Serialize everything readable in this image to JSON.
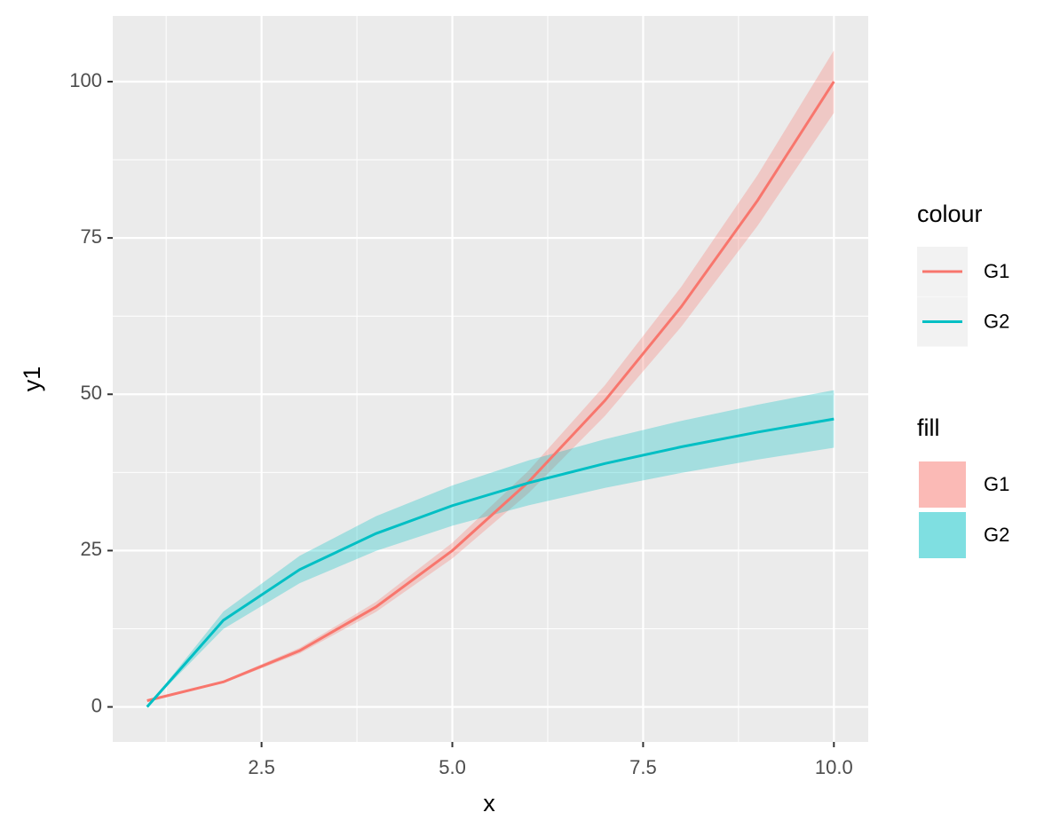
{
  "chart_data": {
    "type": "line",
    "x_label": "x",
    "y_label": "y1",
    "x": [
      1,
      2,
      3,
      4,
      5,
      6,
      7,
      8,
      9,
      10
    ],
    "series": [
      {
        "name": "G1",
        "color": "#F8766D",
        "values": [
          1,
          4,
          9,
          16,
          25,
          36,
          49,
          64,
          81,
          100
        ],
        "lower": [
          0.95,
          3.8,
          8.55,
          15.2,
          23.75,
          34.2,
          46.55,
          60.8,
          76.95,
          95
        ],
        "upper": [
          1.05,
          4.2,
          9.45,
          16.8,
          26.25,
          37.8,
          51.45,
          67.2,
          85.05,
          105
        ]
      },
      {
        "name": "G2",
        "color": "#00BFC4",
        "values": [
          0,
          13.86,
          21.97,
          27.73,
          32.19,
          35.84,
          38.92,
          41.59,
          43.94,
          46.05
        ],
        "lower": [
          0,
          12.48,
          19.78,
          24.95,
          28.97,
          32.25,
          35.02,
          37.43,
          39.55,
          41.45
        ],
        "upper": [
          0,
          15.25,
          24.17,
          30.5,
          35.41,
          39.42,
          42.81,
          45.75,
          48.34,
          50.66
        ]
      }
    ],
    "ribbon_alpha": 0.3,
    "xlim": [
      0.55,
      10.45
    ],
    "ylim": [
      -5.6,
      110.5
    ],
    "xticks": [
      2.5,
      {
        "value": 5,
        "label": "5.0"
      },
      7.5,
      {
        "value": 10,
        "label": "10.0"
      }
    ],
    "yticks": [
      0,
      25,
      50,
      75,
      100
    ],
    "grid": true,
    "legend": {
      "colour_title": "colour",
      "fill_title": "fill",
      "position": "right"
    }
  }
}
